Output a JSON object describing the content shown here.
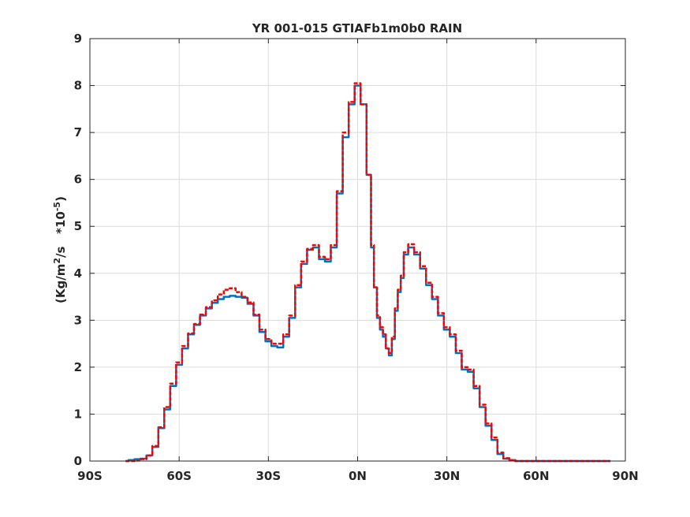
{
  "chart_data": {
    "type": "line",
    "title": "YR 001-015 GTIAFb1m0b0 RAIN",
    "xlabel": "",
    "ylabel_prefix": "(Kg/m",
    "ylabel_sup1": "2",
    "ylabel_mid": "/s   *10",
    "ylabel_sup2": "-5",
    "ylabel_suffix": ")",
    "xlim": [
      -90,
      90
    ],
    "ylim": [
      0,
      9
    ],
    "grid": true,
    "x_ticks": [
      -90,
      -60,
      -30,
      0,
      30,
      60,
      90
    ],
    "x_tick_labels": [
      "90S",
      "60S",
      "30S",
      "0N",
      "30N",
      "60N",
      "90N"
    ],
    "y_ticks": [
      0,
      1,
      2,
      3,
      4,
      5,
      6,
      7,
      8,
      9
    ],
    "y_tick_labels": [
      "0",
      "1",
      "2",
      "3",
      "4",
      "5",
      "6",
      "7",
      "8",
      "9"
    ],
    "series": [
      {
        "color": "#0072bd",
        "style": "solid",
        "x": [
          -78,
          -76,
          -74,
          -72,
          -70,
          -68,
          -66,
          -64,
          -62,
          -60,
          -58,
          -56,
          -54,
          -52,
          -50,
          -48,
          -46,
          -44,
          -42,
          -40,
          -38,
          -36,
          -34,
          -32,
          -30,
          -28,
          -26,
          -24,
          -22,
          -20,
          -18,
          -16,
          -14,
          -12,
          -10,
          -8,
          -6,
          -4,
          -2,
          0,
          2,
          4,
          5,
          6,
          7,
          8,
          9,
          10,
          11,
          12,
          13,
          14,
          15,
          16,
          18,
          20,
          22,
          24,
          26,
          28,
          30,
          32,
          34,
          36,
          38,
          40,
          42,
          44,
          46,
          48,
          50,
          52,
          54,
          56,
          58,
          60,
          62,
          64,
          66,
          68,
          70,
          72,
          74,
          76,
          78,
          80,
          82,
          84,
          85
        ],
        "y": [
          0.0,
          0.02,
          0.04,
          0.05,
          0.12,
          0.3,
          0.7,
          1.1,
          1.6,
          2.05,
          2.4,
          2.7,
          2.9,
          3.1,
          3.25,
          3.37,
          3.45,
          3.5,
          3.52,
          3.5,
          3.48,
          3.35,
          3.1,
          2.75,
          2.55,
          2.45,
          2.42,
          2.65,
          3.05,
          3.7,
          4.2,
          4.5,
          4.55,
          4.3,
          4.25,
          4.55,
          5.7,
          6.9,
          7.6,
          8.0,
          7.6,
          6.1,
          4.55,
          3.7,
          3.05,
          2.8,
          2.65,
          2.4,
          2.25,
          2.6,
          3.2,
          3.6,
          3.9,
          4.4,
          4.55,
          4.4,
          4.1,
          3.75,
          3.45,
          3.1,
          2.8,
          2.65,
          2.3,
          1.95,
          1.9,
          1.55,
          1.15,
          0.75,
          0.45,
          0.15,
          0.05,
          0.02,
          0.0,
          0.0,
          0.0,
          0.0,
          0.0,
          0.0,
          0.0,
          0.0,
          0.0,
          0.0,
          0.0,
          0.0,
          0.0,
          0.0,
          0.0,
          0.0,
          0.0
        ]
      },
      {
        "color": "#ff0000",
        "style": "dashed",
        "x": [
          -78,
          -76,
          -74,
          -72,
          -70,
          -68,
          -66,
          -64,
          -62,
          -60,
          -58,
          -56,
          -54,
          -52,
          -50,
          -48,
          -46,
          -44,
          -42,
          -40,
          -38,
          -36,
          -34,
          -32,
          -30,
          -28,
          -26,
          -24,
          -22,
          -20,
          -18,
          -16,
          -14,
          -12,
          -10,
          -8,
          -6,
          -4,
          -2,
          0,
          2,
          4,
          5,
          6,
          7,
          8,
          9,
          10,
          11,
          12,
          13,
          14,
          15,
          16,
          18,
          20,
          22,
          24,
          26,
          28,
          30,
          32,
          34,
          36,
          38,
          40,
          42,
          44,
          46,
          48,
          50,
          52,
          54,
          56,
          58,
          60,
          62,
          64,
          66,
          68,
          70,
          72,
          74,
          76,
          78,
          80,
          82,
          84,
          85
        ],
        "y": [
          0.0,
          0.0,
          0.01,
          0.04,
          0.12,
          0.32,
          0.72,
          1.15,
          1.65,
          2.1,
          2.45,
          2.72,
          2.92,
          3.12,
          3.28,
          3.42,
          3.55,
          3.65,
          3.68,
          3.6,
          3.5,
          3.38,
          3.12,
          2.8,
          2.6,
          2.5,
          2.5,
          2.7,
          3.1,
          3.75,
          4.25,
          4.52,
          4.6,
          4.35,
          4.3,
          4.6,
          5.75,
          7.0,
          7.65,
          8.05,
          7.6,
          6.1,
          4.6,
          3.7,
          3.1,
          2.85,
          2.7,
          2.4,
          2.3,
          2.65,
          3.25,
          3.65,
          3.95,
          4.45,
          4.62,
          4.45,
          4.15,
          3.8,
          3.5,
          3.15,
          2.85,
          2.7,
          2.35,
          2.0,
          1.95,
          1.6,
          1.2,
          0.8,
          0.5,
          0.18,
          0.06,
          0.02,
          0.0,
          0.0,
          0.0,
          0.0,
          0.0,
          0.0,
          0.0,
          0.0,
          0.0,
          0.0,
          0.0,
          0.0,
          0.0,
          0.0,
          0.0,
          0.0,
          0.0
        ]
      }
    ]
  }
}
